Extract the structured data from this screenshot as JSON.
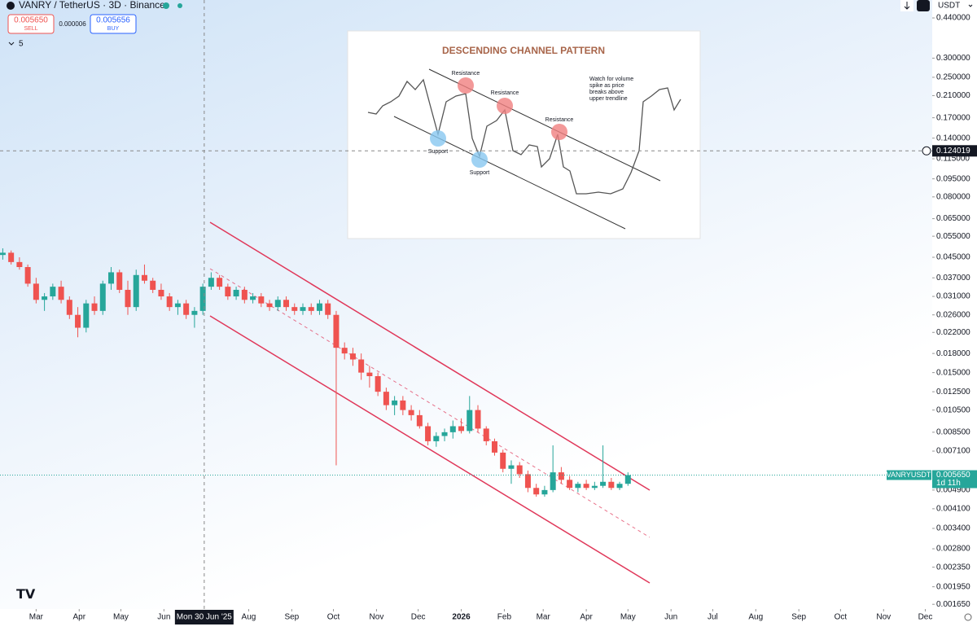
{
  "header": {
    "symbol": "VANRY / TetherUS · 3D · Binance",
    "sell_price": "0.005650",
    "sell": "SELL",
    "spread": "0.000006",
    "buy_price": "0.005656",
    "buy": "BUY",
    "indicator_count": "5",
    "currency": "USDT"
  },
  "chart_data": {
    "type": "candlestick",
    "log": true,
    "grid": false,
    "up_color": "#26a69a",
    "down_color": "#ef5350",
    "symbol_label": "VANRYUSDT",
    "countdown": "1d 11h",
    "xlim": [
      -26,
      645
    ],
    "ylim": [
      0.00133,
      0.522
    ],
    "xticks": [
      {
        "value": 0,
        "label": "Mar"
      },
      {
        "value": 31,
        "label": "Apr"
      },
      {
        "value": 61,
        "label": "May"
      },
      {
        "value": 92,
        "label": "Jun"
      },
      {
        "value": 153,
        "label": "Aug"
      },
      {
        "value": 184,
        "label": "Sep"
      },
      {
        "value": 214,
        "label": "Oct"
      },
      {
        "value": 245,
        "label": "Nov"
      },
      {
        "value": 275,
        "label": "Dec"
      },
      {
        "value": 306,
        "label": "2026"
      },
      {
        "value": 337,
        "label": "Feb"
      },
      {
        "value": 365,
        "label": "Mar"
      },
      {
        "value": 396,
        "label": "Apr"
      },
      {
        "value": 426,
        "label": "May"
      },
      {
        "value": 457,
        "label": "Jun"
      },
      {
        "value": 487,
        "label": "Jul"
      },
      {
        "value": 518,
        "label": "Aug"
      },
      {
        "value": 549,
        "label": "Sep"
      },
      {
        "value": 579,
        "label": "Oct"
      },
      {
        "value": 610,
        "label": "Nov"
      },
      {
        "value": 640,
        "label": "Dec"
      }
    ],
    "yticks": [
      {
        "value": 0.44,
        "label": "0.440000"
      },
      {
        "value": 0.3,
        "label": "0.300000"
      },
      {
        "value": 0.25,
        "label": "0.250000"
      },
      {
        "value": 0.21,
        "label": "0.210000"
      },
      {
        "value": 0.17,
        "label": "0.170000"
      },
      {
        "value": 0.14,
        "label": "0.140000"
      },
      {
        "value": 0.115,
        "label": "0.115000"
      },
      {
        "value": 0.095,
        "label": "0.095000"
      },
      {
        "value": 0.08,
        "label": "0.080000"
      },
      {
        "value": 0.065,
        "label": "0.065000"
      },
      {
        "value": 0.055,
        "label": "0.055000"
      },
      {
        "value": 0.045,
        "label": "0.045000"
      },
      {
        "value": 0.037,
        "label": "0.037000"
      },
      {
        "value": 0.031,
        "label": "0.031000"
      },
      {
        "value": 0.026,
        "label": "0.026000"
      },
      {
        "value": 0.022,
        "label": "0.022000"
      },
      {
        "value": 0.018,
        "label": "0.018000"
      },
      {
        "value": 0.015,
        "label": "0.015000"
      },
      {
        "value": 0.0125,
        "label": "0.012500"
      },
      {
        "value": 0.0105,
        "label": "0.010500"
      },
      {
        "value": 0.0085,
        "label": "0.008500"
      },
      {
        "value": 0.0071,
        "label": "0.007100"
      },
      {
        "value": 0.0049,
        "label": "0.004900"
      },
      {
        "value": 0.0041,
        "label": "0.004100"
      },
      {
        "value": 0.0034,
        "label": "0.003400"
      },
      {
        "value": 0.0028,
        "label": "0.002800"
      },
      {
        "value": 0.00235,
        "label": "0.002350"
      },
      {
        "value": 0.00195,
        "label": "0.001950"
      },
      {
        "value": 0.00165,
        "label": "0.001650"
      }
    ],
    "x": [
      -24,
      -18,
      -12,
      -6,
      0,
      6,
      12,
      18,
      24,
      30,
      36,
      42,
      48,
      54,
      60,
      66,
      72,
      78,
      84,
      90,
      96,
      102,
      108,
      114,
      120,
      126,
      132,
      138,
      144,
      150,
      156,
      162,
      168,
      174,
      180,
      186,
      192,
      198,
      204,
      210,
      216,
      222,
      228,
      234,
      240,
      246,
      252,
      258,
      264,
      270,
      276,
      282,
      288,
      294,
      300,
      306,
      312,
      318,
      324,
      330,
      336,
      342,
      348,
      354,
      360,
      366,
      372,
      378,
      384,
      390,
      396,
      402,
      408,
      414,
      420,
      426
    ],
    "ohlc": [
      [
        0.046,
        0.049,
        0.044,
        0.047
      ],
      [
        0.047,
        0.048,
        0.042,
        0.043
      ],
      [
        0.043,
        0.045,
        0.04,
        0.041
      ],
      [
        0.041,
        0.042,
        0.034,
        0.035
      ],
      [
        0.035,
        0.037,
        0.029,
        0.03
      ],
      [
        0.03,
        0.032,
        0.027,
        0.031
      ],
      [
        0.031,
        0.035,
        0.03,
        0.034
      ],
      [
        0.034,
        0.036,
        0.029,
        0.03
      ],
      [
        0.03,
        0.031,
        0.025,
        0.026
      ],
      [
        0.026,
        0.028,
        0.021,
        0.023
      ],
      [
        0.023,
        0.03,
        0.022,
        0.029
      ],
      [
        0.029,
        0.031,
        0.026,
        0.027
      ],
      [
        0.027,
        0.036,
        0.026,
        0.035
      ],
      [
        0.035,
        0.041,
        0.033,
        0.039
      ],
      [
        0.039,
        0.04,
        0.032,
        0.033
      ],
      [
        0.033,
        0.036,
        0.026,
        0.028
      ],
      [
        0.028,
        0.04,
        0.027,
        0.038
      ],
      [
        0.038,
        0.042,
        0.035,
        0.036
      ],
      [
        0.036,
        0.037,
        0.032,
        0.033
      ],
      [
        0.033,
        0.035,
        0.03,
        0.031
      ],
      [
        0.031,
        0.032,
        0.027,
        0.028
      ],
      [
        0.028,
        0.03,
        0.026,
        0.029
      ],
      [
        0.029,
        0.03,
        0.025,
        0.026
      ],
      [
        0.026,
        0.028,
        0.023,
        0.027
      ],
      [
        0.027,
        0.035,
        0.026,
        0.034
      ],
      [
        0.034,
        0.039,
        0.033,
        0.037
      ],
      [
        0.037,
        0.038,
        0.033,
        0.034
      ],
      [
        0.034,
        0.035,
        0.03,
        0.031
      ],
      [
        0.031,
        0.034,
        0.03,
        0.033
      ],
      [
        0.033,
        0.034,
        0.029,
        0.03
      ],
      [
        0.03,
        0.032,
        0.029,
        0.031
      ],
      [
        0.031,
        0.032,
        0.028,
        0.029
      ],
      [
        0.029,
        0.03,
        0.027,
        0.028
      ],
      [
        0.028,
        0.031,
        0.027,
        0.03
      ],
      [
        0.03,
        0.031,
        0.027,
        0.028
      ],
      [
        0.028,
        0.029,
        0.026,
        0.027
      ],
      [
        0.027,
        0.029,
        0.026,
        0.028
      ],
      [
        0.028,
        0.029,
        0.026,
        0.027
      ],
      [
        0.027,
        0.03,
        0.026,
        0.029
      ],
      [
        0.029,
        0.03,
        0.025,
        0.026
      ],
      [
        0.026,
        0.027,
        0.0062,
        0.019
      ],
      [
        0.019,
        0.02,
        0.017,
        0.018
      ],
      [
        0.018,
        0.019,
        0.016,
        0.017
      ],
      [
        0.017,
        0.018,
        0.014,
        0.015
      ],
      [
        0.015,
        0.016,
        0.013,
        0.0145
      ],
      [
        0.0145,
        0.015,
        0.012,
        0.0125
      ],
      [
        0.0125,
        0.013,
        0.0105,
        0.011
      ],
      [
        0.011,
        0.012,
        0.01,
        0.0115
      ],
      [
        0.0115,
        0.012,
        0.01,
        0.0105
      ],
      [
        0.0105,
        0.011,
        0.0095,
        0.01
      ],
      [
        0.01,
        0.0105,
        0.0088,
        0.009
      ],
      [
        0.009,
        0.0093,
        0.0075,
        0.0078
      ],
      [
        0.0078,
        0.0085,
        0.0074,
        0.0082
      ],
      [
        0.0082,
        0.0088,
        0.0078,
        0.0085
      ],
      [
        0.0085,
        0.0095,
        0.008,
        0.009
      ],
      [
        0.009,
        0.0097,
        0.0084,
        0.0086
      ],
      [
        0.0086,
        0.012,
        0.0084,
        0.0105
      ],
      [
        0.0105,
        0.011,
        0.0085,
        0.0088
      ],
      [
        0.0088,
        0.009,
        0.0075,
        0.0078
      ],
      [
        0.0078,
        0.008,
        0.0068,
        0.007
      ],
      [
        0.007,
        0.0072,
        0.0058,
        0.006
      ],
      [
        0.006,
        0.0065,
        0.0052,
        0.0062
      ],
      [
        0.0062,
        0.0064,
        0.0055,
        0.0057
      ],
      [
        0.0057,
        0.0059,
        0.0048,
        0.005
      ],
      [
        0.005,
        0.0052,
        0.0046,
        0.0047
      ],
      [
        0.0047,
        0.0051,
        0.0046,
        0.0049
      ],
      [
        0.0049,
        0.0075,
        0.0048,
        0.0058
      ],
      [
        0.0058,
        0.0061,
        0.0052,
        0.0054
      ],
      [
        0.0054,
        0.0056,
        0.0049,
        0.005
      ],
      [
        0.005,
        0.0053,
        0.0048,
        0.0052
      ],
      [
        0.0052,
        0.0054,
        0.0049,
        0.005
      ],
      [
        0.005,
        0.0053,
        0.0049,
        0.0051
      ],
      [
        0.0051,
        0.0075,
        0.005,
        0.0053
      ],
      [
        0.0053,
        0.0055,
        0.0049,
        0.005
      ],
      [
        0.005,
        0.0053,
        0.0049,
        0.0052
      ],
      [
        0.0052,
        0.0058,
        0.0051,
        0.00565
      ]
    ],
    "crosshair": {
      "date_label": "Mon 30 Jun '25",
      "x": 121,
      "price": 0.124019
    }
  },
  "inset": {
    "title": "DESCENDING CHANNEL PATTERN",
    "resistance": [
      "Resistance",
      "Resistance",
      "Resistance"
    ],
    "support": [
      "Support",
      "Support"
    ],
    "note": [
      "Watch for volume",
      "spike as price",
      "breaks above",
      "upper trendline"
    ]
  }
}
